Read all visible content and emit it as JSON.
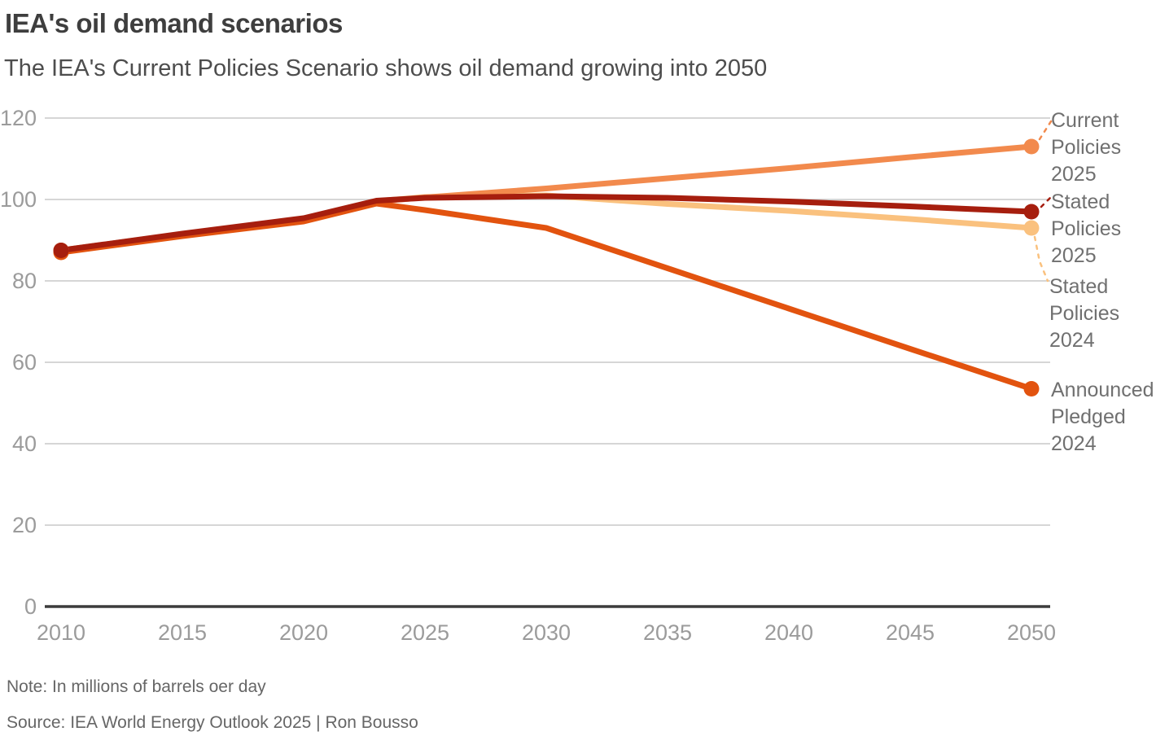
{
  "header": {
    "title": "IEA's oil demand scenarios",
    "subtitle": "The IEA's Current Policies Scenario shows oil demand growing into 2050"
  },
  "notes": {
    "note": "Note: In millions of barrels oer day",
    "source": "Source: IEA World Energy Outlook 2025 | Ron Bousso"
  },
  "colors": {
    "grid": "#d6d6d6",
    "axis": "#3c3c3c",
    "tick_label": "#9b9b9b",
    "annotation_text": "#707070"
  },
  "chart_data": {
    "type": "line",
    "title": "IEA's oil demand scenarios",
    "subtitle": "The IEA's Current Policies Scenario shows oil demand growing into 2050",
    "xlabel": "",
    "ylabel": "",
    "xlim": [
      2010,
      2050
    ],
    "ylim": [
      0,
      120
    ],
    "x_ticks": [
      2010,
      2015,
      2020,
      2025,
      2030,
      2035,
      2040,
      2045,
      2050
    ],
    "y_ticks": [
      0,
      20,
      40,
      60,
      80,
      100,
      120
    ],
    "grid": "horizontal",
    "legend_position": "right-edge-annotations",
    "x": [
      2010,
      2015,
      2020,
      2023,
      2025,
      2030,
      2035,
      2040,
      2045,
      2050
    ],
    "series": [
      {
        "name": "Stated Policies 2024",
        "color": "#FAC17E",
        "values": [
          87.5,
          91.5,
          95.2,
          99.6,
          100.6,
          101.0,
          98.9,
          97.2,
          95.2,
          93.0
        ]
      },
      {
        "name": "Current Policies 2025",
        "color": "#F28A4D",
        "values": [
          87.5,
          91.5,
          95.2,
          99.5,
          100.5,
          102.7,
          105.2,
          107.7,
          110.4,
          113.0
        ]
      },
      {
        "name": "Announced Pledged 2024",
        "color": "#E2530F",
        "values": [
          87.0,
          91.0,
          94.6,
          99.0,
          97.4,
          93.0,
          83.1,
          73.2,
          63.3,
          53.5
        ]
      },
      {
        "name": "Stated Policies 2025",
        "color": "#A61E0E",
        "values": [
          87.5,
          91.6,
          95.4,
          99.7,
          100.4,
          100.8,
          100.4,
          99.5,
          98.3,
          97.0
        ]
      }
    ]
  }
}
